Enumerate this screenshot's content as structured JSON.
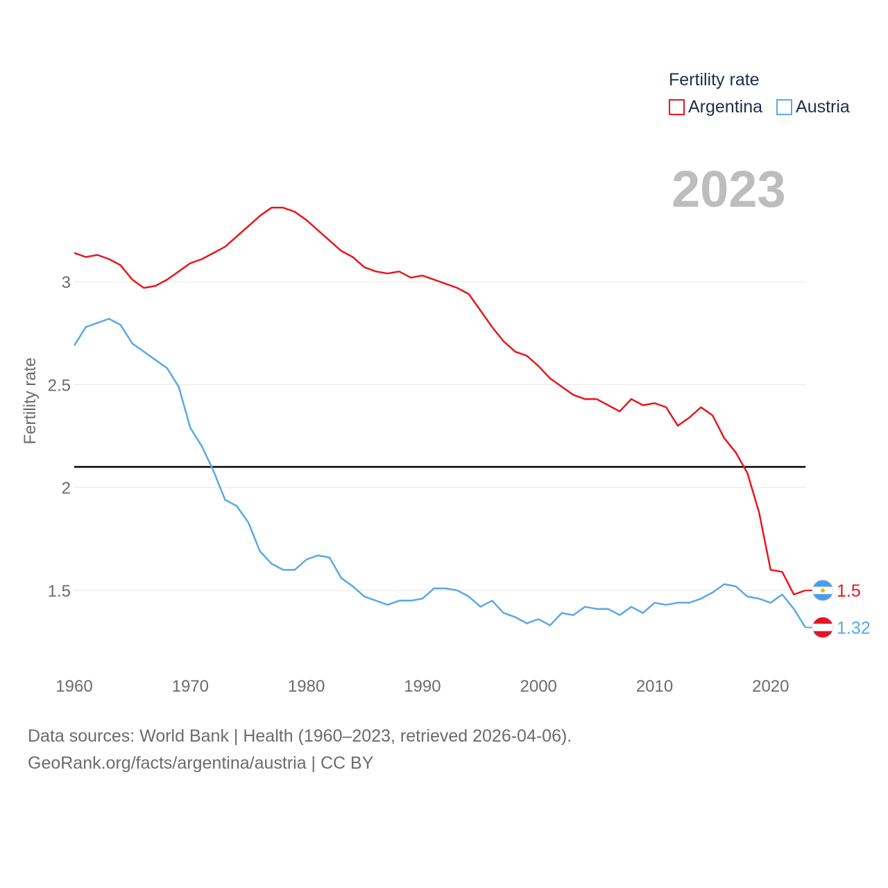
{
  "legend": {
    "title": "Fertility rate",
    "items": [
      {
        "label": "Argentina",
        "color": "#e8161b"
      },
      {
        "label": "Austria",
        "color": "#5aa8e6"
      }
    ]
  },
  "current_year": "2023",
  "source": {
    "line1": "Data sources: World Bank | Health (1960–2023, retrieved 2026-04-06).",
    "line2": "GeoRank.org/facts/argentina/austria | CC BY"
  },
  "chart_data": {
    "type": "line",
    "title": "",
    "xlabel": "",
    "ylabel": "Fertility rate",
    "xlim": [
      1960,
      2023
    ],
    "ylim": [
      1.2,
      3.56
    ],
    "x_ticks": [
      1960,
      1970,
      1980,
      1990,
      2000,
      2010,
      2020
    ],
    "y_ticks": [
      1.5,
      2,
      2.5,
      3
    ],
    "y_tick_labels": [
      "1.5",
      "2",
      "2.5",
      "3"
    ],
    "grid": "horizontal",
    "reference_line": {
      "y": 2.1,
      "color": "#000000"
    },
    "x": [
      1960,
      1961,
      1962,
      1963,
      1964,
      1965,
      1966,
      1967,
      1968,
      1969,
      1970,
      1971,
      1972,
      1973,
      1974,
      1975,
      1976,
      1977,
      1978,
      1979,
      1980,
      1981,
      1982,
      1983,
      1984,
      1985,
      1986,
      1987,
      1988,
      1989,
      1990,
      1991,
      1992,
      1993,
      1994,
      1995,
      1996,
      1997,
      1998,
      1999,
      2000,
      2001,
      2002,
      2003,
      2004,
      2005,
      2006,
      2007,
      2008,
      2009,
      2010,
      2011,
      2012,
      2013,
      2014,
      2015,
      2016,
      2017,
      2018,
      2019,
      2020,
      2021,
      2022,
      2023
    ],
    "series": [
      {
        "name": "Argentina",
        "color": "#e8161b",
        "end_label": "1.5",
        "flag": "argentina-flag",
        "values": [
          3.14,
          3.12,
          3.13,
          3.11,
          3.08,
          3.01,
          2.97,
          2.98,
          3.01,
          3.05,
          3.09,
          3.11,
          3.14,
          3.17,
          3.22,
          3.27,
          3.32,
          3.36,
          3.36,
          3.34,
          3.3,
          3.25,
          3.2,
          3.15,
          3.12,
          3.07,
          3.05,
          3.04,
          3.05,
          3.02,
          3.03,
          3.01,
          2.99,
          2.97,
          2.94,
          2.86,
          2.78,
          2.71,
          2.66,
          2.64,
          2.59,
          2.53,
          2.49,
          2.45,
          2.43,
          2.43,
          2.4,
          2.37,
          2.43,
          2.4,
          2.41,
          2.39,
          2.3,
          2.34,
          2.39,
          2.35,
          2.24,
          2.17,
          2.07,
          1.88,
          1.6,
          1.59,
          1.48,
          1.5
        ]
      },
      {
        "name": "Austria",
        "color": "#5aa8e6",
        "end_label": "1.32",
        "flag": "austria-flag",
        "values": [
          2.69,
          2.78,
          2.8,
          2.82,
          2.79,
          2.7,
          2.66,
          2.62,
          2.58,
          2.49,
          2.29,
          2.2,
          2.08,
          1.94,
          1.91,
          1.83,
          1.69,
          1.63,
          1.6,
          1.6,
          1.65,
          1.67,
          1.66,
          1.56,
          1.52,
          1.47,
          1.45,
          1.43,
          1.45,
          1.45,
          1.46,
          1.51,
          1.51,
          1.5,
          1.47,
          1.42,
          1.45,
          1.39,
          1.37,
          1.34,
          1.36,
          1.33,
          1.39,
          1.38,
          1.42,
          1.41,
          1.41,
          1.38,
          1.42,
          1.39,
          1.44,
          1.43,
          1.44,
          1.44,
          1.46,
          1.49,
          1.53,
          1.52,
          1.47,
          1.46,
          1.44,
          1.48,
          1.41,
          1.32
        ]
      }
    ]
  }
}
